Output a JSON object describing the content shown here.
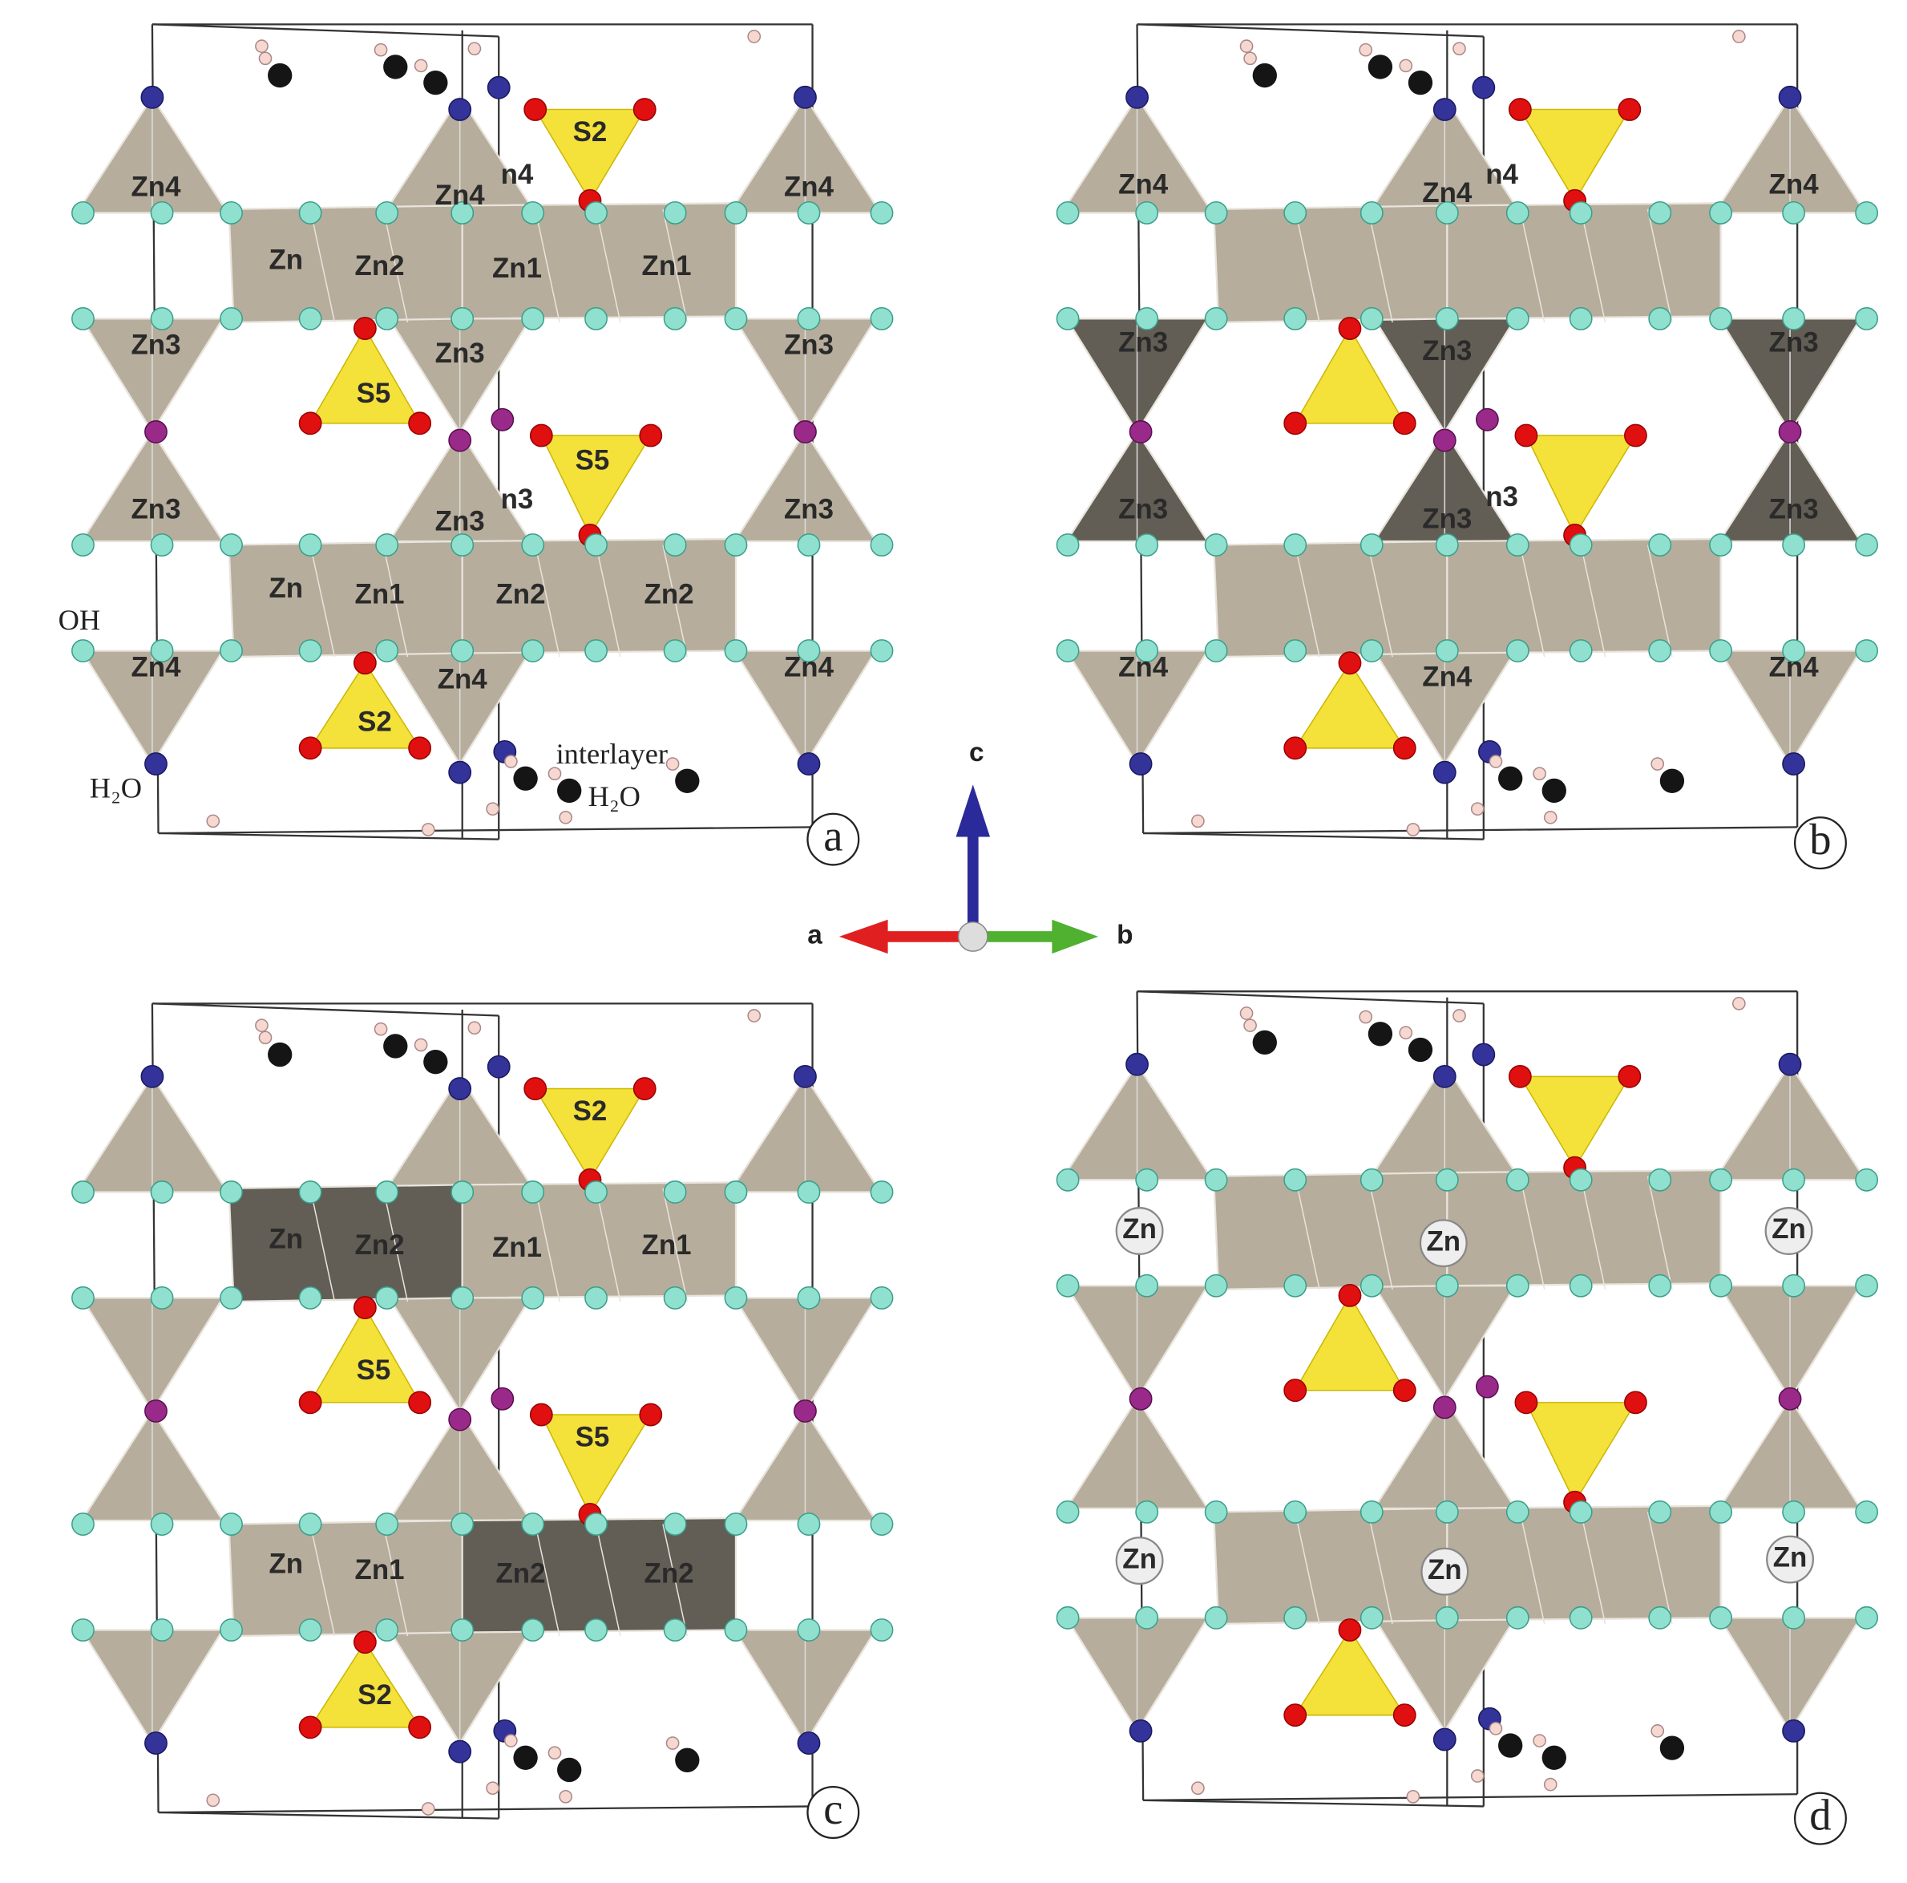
{
  "panels": [
    {
      "letter": "a",
      "labels": [
        "Zn4",
        "Zn4",
        "n4",
        "S2",
        "Zn",
        "Zn2",
        "Zn1",
        "Zn1",
        "Zn3",
        "Zn3",
        "S5",
        "S5",
        "Zn3",
        "n3",
        "Zn3",
        "Zn3",
        "Zn4",
        "Zn3",
        "Zn",
        "Zn1",
        "Zn2",
        "Zn2",
        "Zn4",
        "Zn4",
        "Zn4",
        "S2",
        "OH",
        "H₂O",
        "interlayer",
        "H₂O"
      ]
    },
    {
      "letter": "b",
      "labels": [
        "Zn4",
        "Zn4",
        "n4",
        "Zn4",
        "Zn3",
        "Zn3",
        "Zn3",
        "Zn3",
        "n3",
        "Zn3",
        "Zn3",
        "Zn4",
        "Zn4",
        "Zn4"
      ]
    },
    {
      "letter": "c",
      "labels": [
        "S2",
        "Zn",
        "Zn2",
        "Zn1",
        "Zn1",
        "S5",
        "S5",
        "Zn",
        "Zn1",
        "Zn2",
        "Zn2",
        "S2"
      ]
    },
    {
      "letter": "d",
      "labels": [
        "Zn",
        "Zn",
        "Zn",
        "Zn",
        "Zn",
        "Zn"
      ]
    }
  ],
  "axes": [
    "c",
    "a",
    "b"
  ]
}
